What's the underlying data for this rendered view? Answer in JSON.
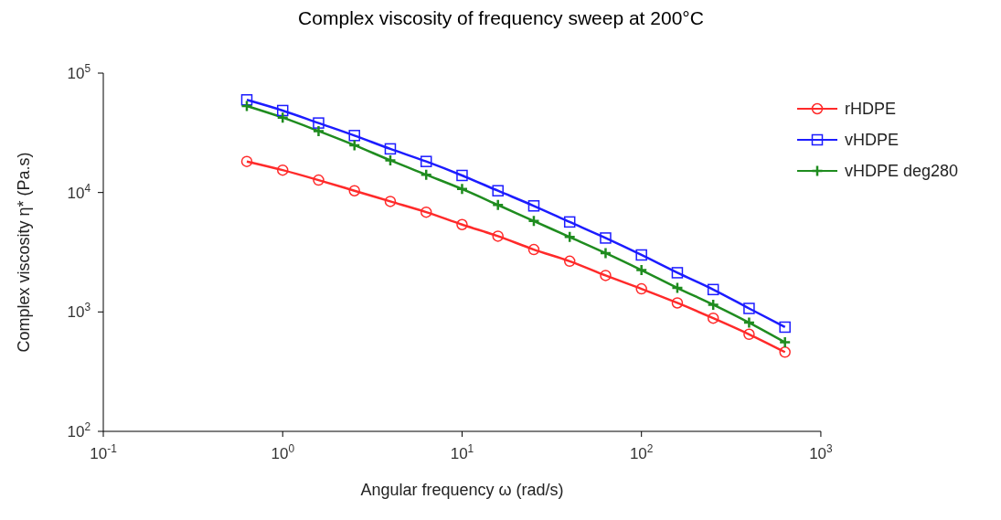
{
  "chart_data": {
    "type": "line",
    "title": "Complex viscosity of frequency sweep at 200°C",
    "xlabel": "Angular frequency  ω  (rad/s)",
    "ylabel": "Complex viscosity  η*  (Pa.s)",
    "x": [
      0.631,
      1,
      1.585,
      2.512,
      3.981,
      6.31,
      10,
      15.85,
      25.12,
      39.81,
      63.1,
      100,
      158.5,
      251.2,
      398.1,
      631
    ],
    "series": [
      {
        "name": "rHDPE",
        "color": "#ff2a2a",
        "marker": "circle",
        "values": [
          18200,
          15400,
          12700,
          10350,
          8420,
          6850,
          5390,
          4310,
          3330,
          2660,
          2020,
          1560,
          1190,
          887,
          650,
          461
        ]
      },
      {
        "name": "vHDPE",
        "color": "#1c1cff",
        "marker": "square",
        "values": [
          59700,
          48600,
          38200,
          30000,
          23200,
          18200,
          13900,
          10350,
          7730,
          5670,
          4160,
          3000,
          2130,
          1540,
          1070,
          746
        ]
      },
      {
        "name": "vHDPE deg280",
        "color": "#1f8c1f",
        "marker": "cross",
        "values": [
          53000,
          42400,
          32700,
          24900,
          18600,
          14100,
          10700,
          7870,
          5770,
          4240,
          3110,
          2240,
          1590,
          1150,
          813,
          557
        ]
      }
    ],
    "log": "xy",
    "xlim": [
      0.1,
      1000
    ],
    "ylim": [
      100,
      100000
    ],
    "xticks": [
      {
        "value": 0.1,
        "label": "10$^{-1}$"
      },
      {
        "value": 1,
        "label": "10$^{0}$"
      },
      {
        "value": 10,
        "label": "10$^{1}$"
      },
      {
        "value": 100,
        "label": "10$^{2}$"
      },
      {
        "value": 1000,
        "label": "10$^{3}$"
      }
    ],
    "yticks": [
      {
        "value": 100,
        "label": "10$^{2}$"
      },
      {
        "value": 1000,
        "label": "10$^{3}$"
      },
      {
        "value": 10000,
        "label": "10$^{4}$"
      },
      {
        "value": 100000,
        "label": "10$^{5}$"
      }
    ],
    "grid": false,
    "legend": "top right",
    "line_style": "solid"
  }
}
